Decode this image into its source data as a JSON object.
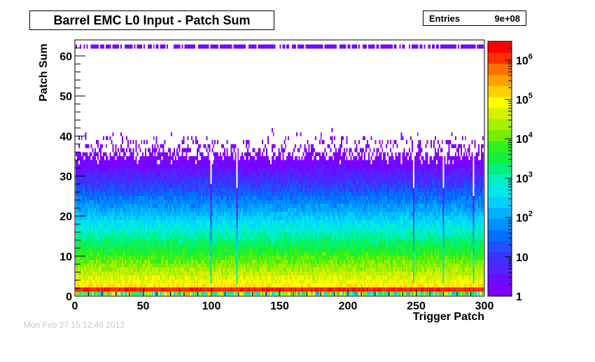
{
  "chart_data": {
    "type": "heatmap",
    "title": "Barrel EMC L0 Input - Patch Sum",
    "xlabel": "Trigger Patch",
    "ylabel": "Patch Sum",
    "xlim": [
      0,
      300
    ],
    "ylim": [
      0,
      64
    ],
    "x_ticks": [
      "0",
      "50",
      "100",
      "150",
      "200",
      "250",
      "300"
    ],
    "y_ticks": [
      "0",
      "10",
      "20",
      "30",
      "40",
      "50",
      "60"
    ],
    "z_scale": "log",
    "z_range": [
      1,
      3000000
    ],
    "z_ticks": [
      "1",
      "10",
      "10^2",
      "10^3",
      "10^4",
      "10^5",
      "10^6"
    ],
    "n_x_bins": 300,
    "n_y_bins": 64,
    "grid": false,
    "legend": "colorbar-right",
    "stats": {
      "label": "Entries",
      "value": "9e+08"
    },
    "palette": [
      "#7f00ff",
      "#6a0dff",
      "#5522ff",
      "#3a33ff",
      "#2050ff",
      "#0070ff",
      "#0090ff",
      "#00b0ff",
      "#00d0ff",
      "#00e8e8",
      "#00f0c0",
      "#00f080",
      "#10f040",
      "#30f020",
      "#70f000",
      "#a8f000",
      "#d8f000",
      "#ffff00",
      "#ffd000",
      "#ffa000",
      "#ff7000",
      "#ff3000",
      "#ff0000"
    ]
  },
  "footer": {
    "text": "Mon Feb 27 15:12:48 2012"
  }
}
